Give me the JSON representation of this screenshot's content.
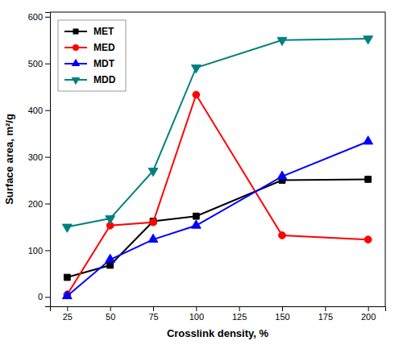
{
  "chart_data": {
    "type": "line",
    "xlabel": "Crosslink density, %",
    "ylabel": "Surface area, m²/g",
    "x": [
      25,
      50,
      75,
      100,
      150,
      200
    ],
    "xlim": [
      15,
      210
    ],
    "ylim": [
      -20,
      610
    ],
    "xticks": [
      25,
      50,
      75,
      100,
      125,
      150,
      175,
      200
    ],
    "yticks": [
      0,
      100,
      200,
      300,
      400,
      500,
      600
    ],
    "grid": false,
    "legend": "upper left",
    "series": [
      {
        "name": "MET",
        "color": "#000000",
        "marker": "square",
        "values": [
          42,
          68,
          162,
          173,
          250,
          252
        ]
      },
      {
        "name": "MED",
        "color": "#ff0000",
        "marker": "circle",
        "values": [
          5,
          153,
          160,
          433,
          132,
          123
        ]
      },
      {
        "name": "MDT",
        "color": "#0000ff",
        "marker": "triangle-up",
        "values": [
          2,
          80,
          123,
          153,
          258,
          333
        ]
      },
      {
        "name": "MDD",
        "color": "#008080",
        "marker": "triangle-down",
        "values": [
          150,
          168,
          270,
          491,
          550,
          553
        ]
      }
    ]
  }
}
